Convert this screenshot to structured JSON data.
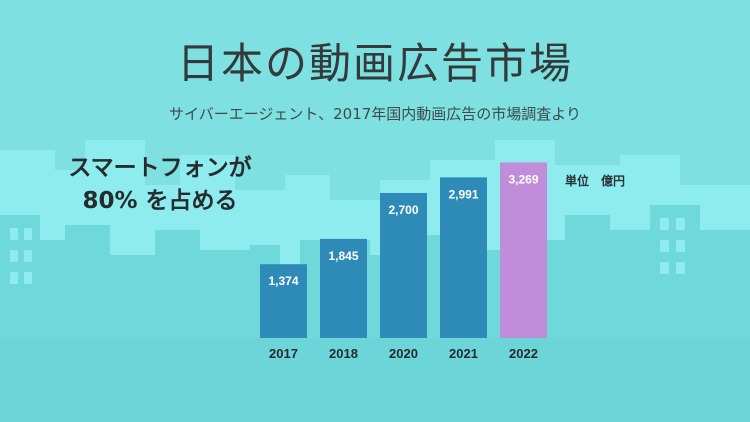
{
  "header": {
    "title": "日本の動画広告市場",
    "subtitle": "サイバーエージェント、2017年国内動画広告の市場調査より"
  },
  "callout": {
    "line1": "スマートフォンが",
    "line2": "80% を占める"
  },
  "unit_label": "単位　億円",
  "colors": {
    "background": "#7ee0e0",
    "skyline_back": "#8eecef",
    "skyline_front": "#6fd8da",
    "ground": "#6bd5d8",
    "bar": "#2e8bb8",
    "bar_highlight": "#c08ddb",
    "label": "#ffffff",
    "axis_text": "#262c2e"
  },
  "chart_data": {
    "type": "bar",
    "categories": [
      "2017",
      "2018",
      "2020",
      "2021",
      "2022"
    ],
    "values": [
      1374,
      1845,
      2700,
      2991,
      3269
    ],
    "value_labels": [
      "1,374",
      "1,845",
      "2,700",
      "2,991",
      "3,269"
    ],
    "highlight_index": 4,
    "title": "日本の動画広告市場",
    "unit": "単位　億円",
    "ylim": [
      0,
      3500
    ],
    "grid": false,
    "legend": "none"
  }
}
